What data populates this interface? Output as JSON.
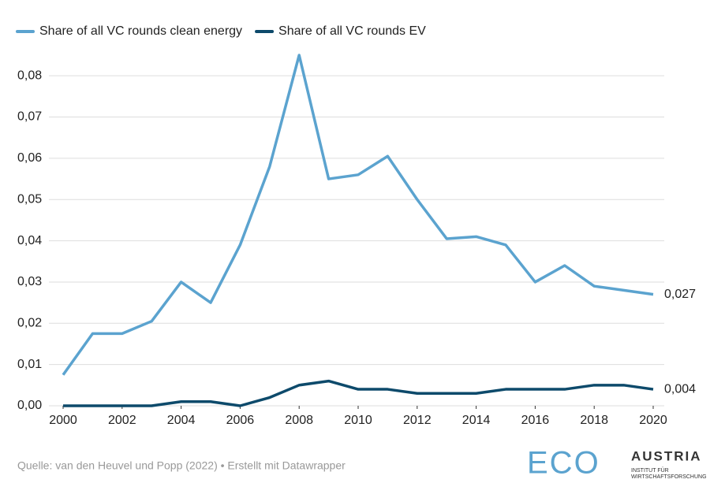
{
  "chart_data": {
    "type": "line",
    "x": [
      2000,
      2001,
      2002,
      2003,
      2004,
      2005,
      2006,
      2007,
      2008,
      2009,
      2010,
      2011,
      2012,
      2013,
      2014,
      2015,
      2016,
      2017,
      2018,
      2019,
      2020
    ],
    "series": [
      {
        "name": "Share of all VC rounds clean energy",
        "color": "#5ba3cf",
        "values": [
          0.0075,
          0.0175,
          0.0175,
          0.0205,
          0.03,
          0.025,
          0.039,
          0.058,
          0.085,
          0.055,
          0.056,
          0.0605,
          0.05,
          0.0405,
          0.041,
          0.039,
          0.03,
          0.034,
          0.029,
          0.028,
          0.027
        ],
        "value_labels": [
          null,
          null,
          null,
          null,
          null,
          null,
          null,
          null,
          null,
          null,
          null,
          null,
          null,
          null,
          null,
          null,
          null,
          null,
          null,
          null,
          "0,027"
        ]
      },
      {
        "name": "Share of all VC rounds EV",
        "color": "#0d4a6b",
        "values": [
          0,
          0,
          0,
          0,
          0.001,
          0.001,
          0,
          0.002,
          0.005,
          0.006,
          0.004,
          0.004,
          0.003,
          0.003,
          0.003,
          0.004,
          0.004,
          0.004,
          0.005,
          0.005,
          0.004
        ],
        "value_labels": [
          null,
          null,
          null,
          null,
          null,
          null,
          null,
          null,
          null,
          null,
          null,
          null,
          null,
          null,
          null,
          null,
          null,
          null,
          null,
          null,
          "0,004"
        ]
      }
    ],
    "xlim": [
      2000,
      2020
    ],
    "xticks": [
      2000,
      2002,
      2004,
      2006,
      2008,
      2010,
      2012,
      2014,
      2016,
      2018,
      2020
    ],
    "ylim": [
      0,
      0.085
    ],
    "yticks": [
      {
        "value": 0,
        "label": "0,00"
      },
      {
        "value": 0.01,
        "label": "0,01"
      },
      {
        "value": 0.02,
        "label": "0,02"
      },
      {
        "value": 0.03,
        "label": "0,03"
      },
      {
        "value": 0.04,
        "label": "0,04"
      },
      {
        "value": 0.05,
        "label": "0,05"
      },
      {
        "value": 0.06,
        "label": "0,06"
      },
      {
        "value": 0.07,
        "label": "0,07"
      },
      {
        "value": 0.08,
        "label": "0,08"
      }
    ],
    "grid": true,
    "legend": "top-left",
    "source": "Quelle: van den Heuvel und Popp (2022) • Erstellt mit Datawrapper",
    "logo": {
      "mark": "ECO",
      "name": "AUSTRIA",
      "line1": "INSTITUT FÜR",
      "line2": "WIRTSCHAFTSFORSCHUNG"
    }
  }
}
